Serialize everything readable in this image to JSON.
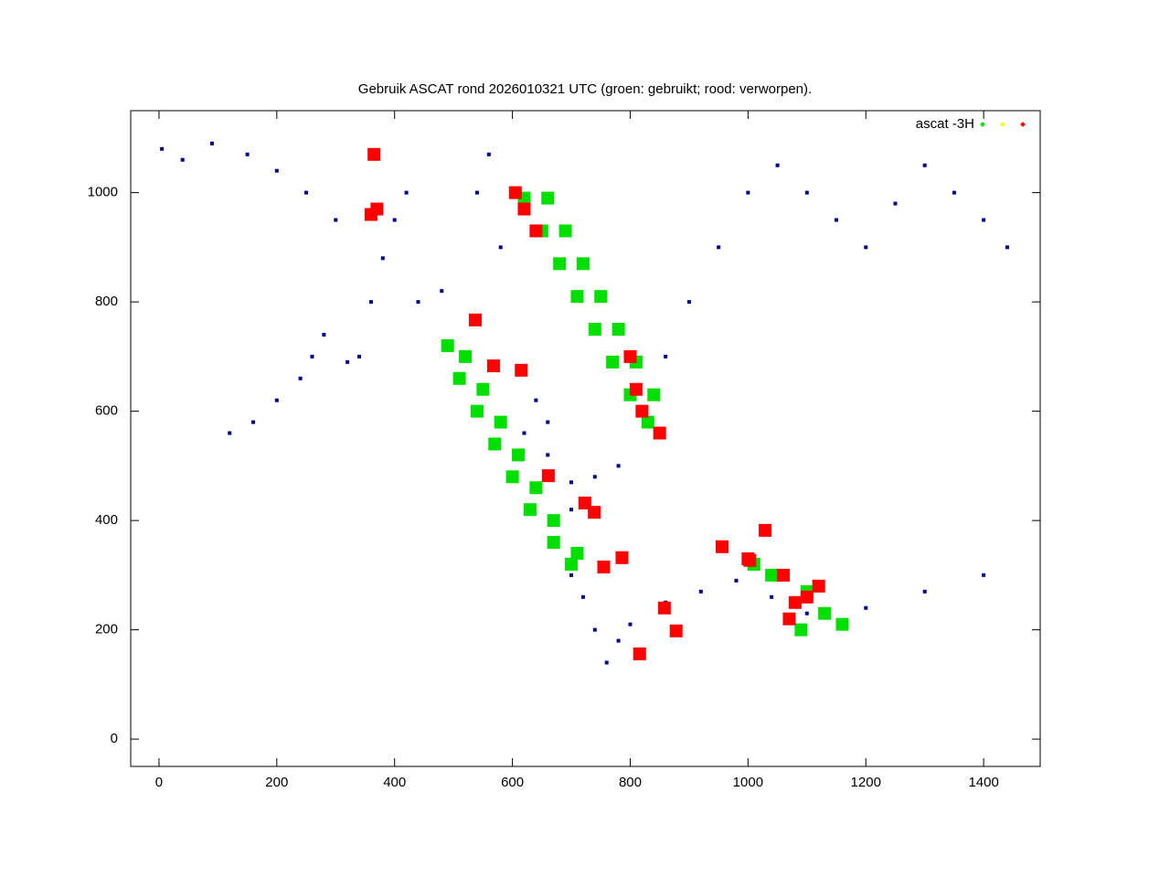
{
  "chart_data": {
    "type": "scatter",
    "title": "Gebruik ASCAT rond 2026010321 UTC (groen: gebruikt; rood: verworpen).",
    "legend_label": "ascat -3H",
    "legend": "upper right",
    "xlim": [
      -48,
      1496
    ],
    "ylim": [
      -50,
      1150
    ],
    "xticks": [
      0,
      200,
      400,
      600,
      800,
      1000,
      1200,
      1400
    ],
    "yticks": [
      0,
      200,
      400,
      600,
      800,
      1000
    ],
    "series": [
      {
        "color": "#00008b",
        "x": [
          5,
          40,
          90,
          150,
          200,
          250,
          300,
          320,
          340,
          360,
          380,
          400,
          420,
          440,
          480,
          540,
          560,
          580,
          620,
          660,
          700,
          740,
          780,
          820,
          860,
          900,
          950,
          1000,
          1050,
          1100,
          1150,
          1200,
          1250,
          1300,
          1350,
          1400,
          1440,
          700,
          720,
          740,
          760,
          780,
          800,
          860,
          920,
          980,
          1040,
          1100,
          1200,
          1300,
          1400,
          640,
          660,
          700,
          120,
          160,
          200,
          240,
          260,
          280
        ],
        "y": [
          1080,
          1060,
          1090,
          1070,
          1040,
          1000,
          950,
          690,
          700,
          800,
          880,
          950,
          1000,
          800,
          820,
          1000,
          1070,
          900,
          560,
          520,
          470,
          480,
          500,
          600,
          700,
          800,
          900,
          1000,
          1050,
          1000,
          950,
          900,
          980,
          1050,
          1000,
          950,
          900,
          300,
          260,
          200,
          140,
          180,
          210,
          250,
          270,
          290,
          260,
          230,
          240,
          270,
          300,
          620,
          580,
          420,
          560,
          580,
          620,
          660,
          700,
          740
        ]
      },
      {
        "color": "#00e000",
        "x": [
          620,
          660,
          650,
          690,
          680,
          720,
          710,
          750,
          740,
          780,
          770,
          810,
          800,
          840,
          830,
          490,
          520,
          510,
          550,
          540,
          580,
          570,
          610,
          600,
          640,
          630,
          670,
          670,
          710,
          700,
          1010,
          1040,
          1100,
          1130,
          1160,
          1090
        ],
        "y": [
          990,
          990,
          930,
          930,
          870,
          870,
          810,
          810,
          750,
          750,
          690,
          690,
          630,
          630,
          580,
          720,
          700,
          660,
          640,
          600,
          580,
          540,
          520,
          480,
          460,
          420,
          400,
          360,
          340,
          320,
          320,
          300,
          270,
          230,
          210,
          200
        ]
      },
      {
        "color": "#ffff00",
        "x": [],
        "y": []
      },
      {
        "color": "#ff0000",
        "x": [
          605,
          620,
          640,
          800,
          810,
          820,
          850,
          661,
          723,
          739,
          786,
          755,
          537,
          568,
          615,
          1000,
          1060,
          1080,
          1070,
          1100,
          1120,
          370,
          360,
          365,
          816,
          878,
          858,
          1003,
          956,
          1029
        ],
        "y": [
          1000,
          970,
          930,
          700,
          640,
          600,
          560,
          482,
          432,
          415,
          332,
          315,
          767,
          683,
          675,
          330,
          300,
          250,
          220,
          260,
          280,
          970,
          960,
          1070,
          156,
          198,
          240,
          327,
          352,
          382
        ]
      }
    ]
  }
}
